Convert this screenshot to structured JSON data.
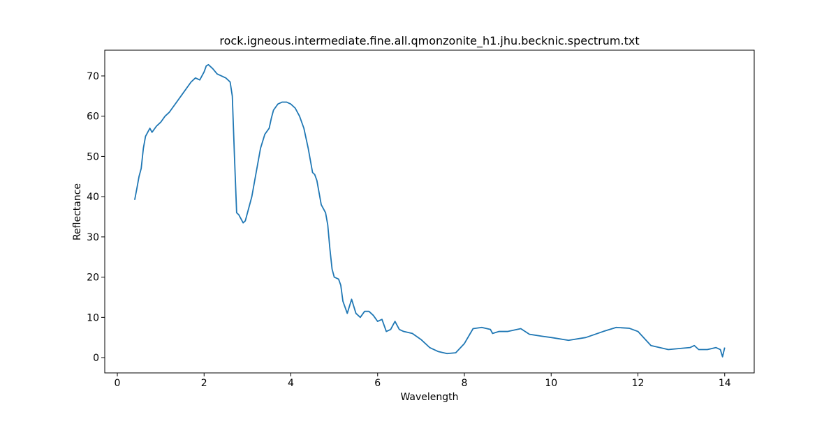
{
  "chart_data": {
    "type": "line",
    "title": "rock.igneous.intermediate.fine.all.qmonzonite_h1.jhu.becknic.spectrum.txt",
    "xlabel": "Wavelength",
    "ylabel": "Reflectance",
    "x": [
      0.4,
      0.45,
      0.5,
      0.55,
      0.6,
      0.65,
      0.7,
      0.75,
      0.8,
      0.9,
      1.0,
      1.1,
      1.2,
      1.3,
      1.4,
      1.5,
      1.6,
      1.7,
      1.8,
      1.9,
      2.0,
      2.05,
      2.1,
      2.2,
      2.3,
      2.4,
      2.5,
      2.6,
      2.65,
      2.7,
      2.75,
      2.8,
      2.85,
      2.9,
      2.95,
      3.0,
      3.1,
      3.2,
      3.3,
      3.4,
      3.5,
      3.55,
      3.6,
      3.7,
      3.8,
      3.9,
      4.0,
      4.1,
      4.2,
      4.3,
      4.4,
      4.5,
      4.55,
      4.6,
      4.7,
      4.8,
      4.85,
      4.9,
      4.95,
      5.0,
      5.1,
      5.15,
      5.2,
      5.3,
      5.4,
      5.5,
      5.6,
      5.7,
      5.8,
      5.9,
      6.0,
      6.1,
      6.2,
      6.3,
      6.4,
      6.5,
      6.6,
      6.8,
      7.0,
      7.2,
      7.4,
      7.6,
      7.8,
      8.0,
      8.2,
      8.4,
      8.6,
      8.65,
      8.8,
      9.0,
      9.3,
      9.5,
      9.8,
      10.0,
      10.4,
      10.8,
      11.2,
      11.5,
      11.8,
      12.0,
      12.3,
      12.5,
      12.7,
      13.0,
      13.2,
      13.3,
      13.4,
      13.6,
      13.8,
      13.9,
      13.95,
      14.0
    ],
    "series": [
      {
        "name": "Reflectance",
        "color": "#1f77b4",
        "values": [
          39.2,
          42,
          45,
          47,
          52,
          55,
          56,
          57,
          56,
          57.5,
          58.5,
          60,
          61,
          62.5,
          64,
          65.5,
          67,
          68.5,
          69.5,
          69,
          71,
          72.5,
          72.8,
          71.8,
          70.5,
          70,
          69.5,
          68.5,
          65,
          50,
          36,
          35.5,
          34.5,
          33.5,
          34,
          36,
          40,
          46,
          52,
          55.5,
          57,
          59.5,
          61.5,
          63,
          63.5,
          63.5,
          63,
          62,
          60,
          57,
          52,
          46,
          45.5,
          44,
          38,
          36,
          33,
          27,
          22,
          20,
          19.5,
          18,
          14,
          11,
          14.5,
          11,
          10,
          11.5,
          11.5,
          10.5,
          9,
          9.5,
          6.5,
          7,
          9,
          7,
          6.5,
          6,
          4.5,
          2.5,
          1.5,
          1,
          1.2,
          3.5,
          7.2,
          7.5,
          7,
          6,
          6.5,
          6.5,
          7.2,
          5.8,
          5.3,
          5,
          4.3,
          5,
          6.5,
          7.5,
          7.3,
          6.5,
          3,
          2.5,
          2,
          2.3,
          2.5,
          3,
          2,
          2,
          2.5,
          2,
          0.2,
          2.5
        ]
      }
    ],
    "xlim": [
      -0.29,
      14.68
    ],
    "xticks": [
      0,
      2,
      4,
      6,
      8,
      10,
      12,
      14
    ],
    "ylim": [
      -3.8,
      76.4
    ],
    "yticks": [
      0,
      10,
      20,
      30,
      40,
      50,
      60,
      70
    ],
    "grid": false
  }
}
